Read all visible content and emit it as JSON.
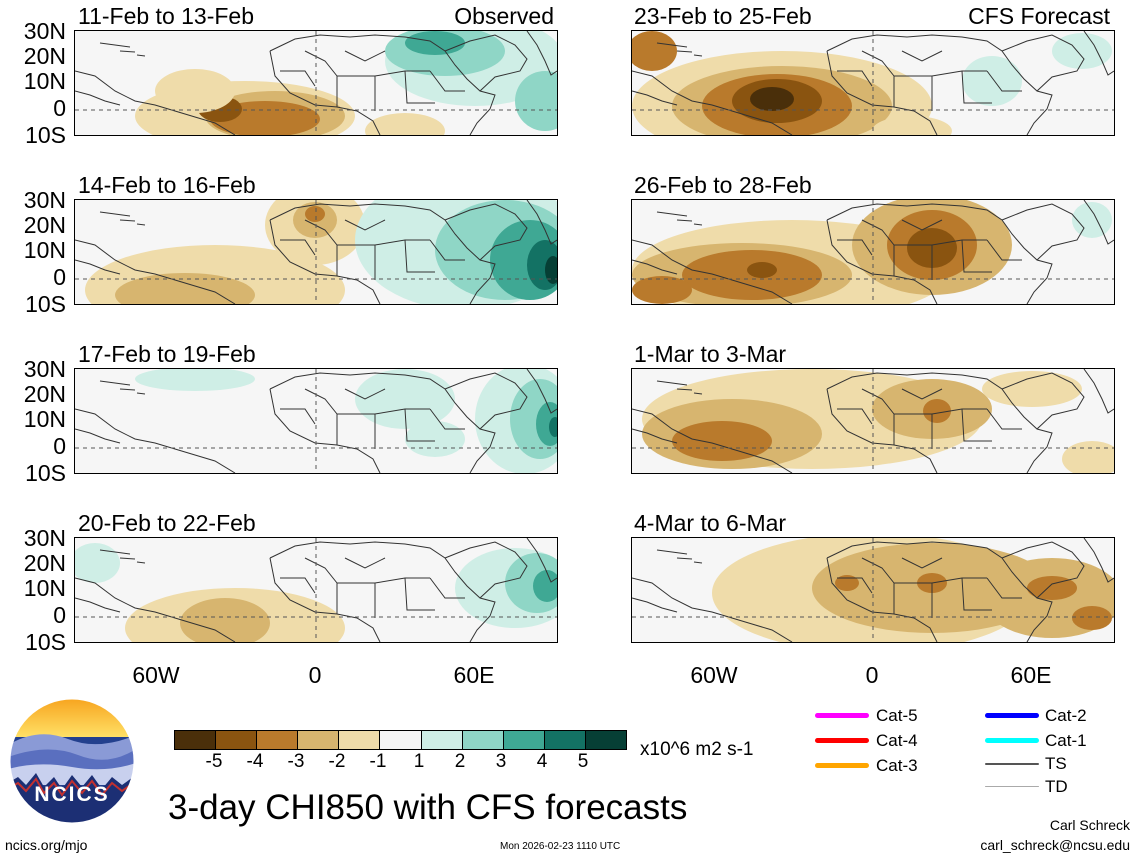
{
  "header": {
    "left_label": "Observed",
    "right_label": "CFS Forecast"
  },
  "panels_left": [
    {
      "title": "11-Feb to 13-Feb"
    },
    {
      "title": "14-Feb to 16-Feb"
    },
    {
      "title": "17-Feb to 19-Feb"
    },
    {
      "title": "20-Feb to 22-Feb"
    }
  ],
  "panels_right": [
    {
      "title": "23-Feb to 25-Feb"
    },
    {
      "title": "26-Feb to 28-Feb"
    },
    {
      "title": "1-Mar to 3-Mar"
    },
    {
      "title": "4-Mar to 6-Mar"
    }
  ],
  "lat_ticks": [
    "30N",
    "20N",
    "10N",
    "0",
    "10S"
  ],
  "lon_ticks": [
    "60W",
    "0",
    "60E"
  ],
  "colorbar": {
    "labels": [
      "-5",
      "-4",
      "-3",
      "-2",
      "-1",
      "1",
      "2",
      "3",
      "4",
      "5"
    ],
    "units": "x10^6 m2 s-1",
    "colors": [
      "#4a2f0a",
      "#8a5410",
      "#b97a2c",
      "#d7b56f",
      "#efdcaa",
      "#f6f6f6",
      "#cfeee6",
      "#8fd6c6",
      "#3fa894",
      "#137264",
      "#063f35"
    ]
  },
  "legend": {
    "items": [
      {
        "label": "Cat-5",
        "color": "#ff00ff"
      },
      {
        "label": "Cat-4",
        "color": "#ff0000"
      },
      {
        "label": "Cat-3",
        "color": "#ffa500"
      },
      {
        "label": "Cat-2",
        "color": "#0000ff"
      },
      {
        "label": "Cat-1",
        "color": "#00ffff"
      },
      {
        "label": "TS",
        "color": "#555555"
      },
      {
        "label": "TD",
        "color": "#aaaaaa"
      }
    ]
  },
  "logo": {
    "text": "NCICS"
  },
  "main_title": "3-day CHI850 with CFS forecasts",
  "footer": {
    "website": "ncics.org/mjo",
    "timestamp": "Mon 2026-02-23 1110 UTC",
    "author": "Carl Schreck",
    "email": "carl_schreck@ncsu.edu"
  }
}
